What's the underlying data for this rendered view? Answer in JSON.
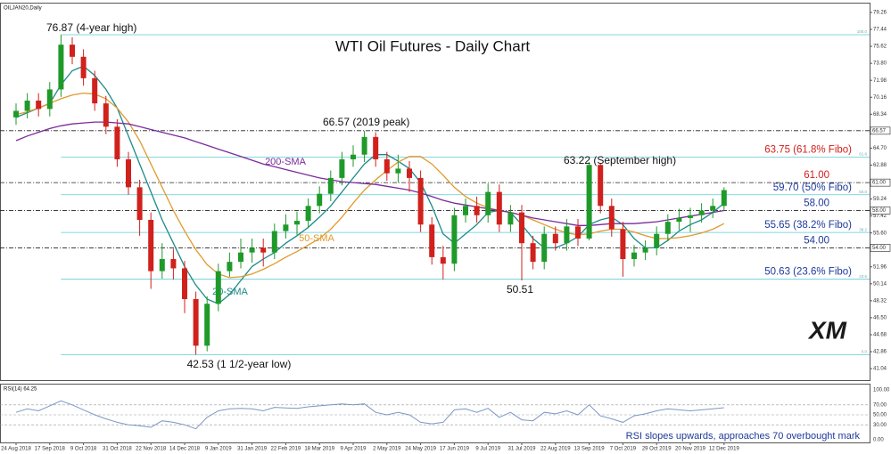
{
  "chart_data": {
    "type": "candlestick",
    "title": "WTI Oil Futures - Daily Chart",
    "symbol_label": "OILJAN20,Daily",
    "logo": "XM",
    "note": "RSI slopes upwards, approaches 70 overbought mark",
    "categories": [
      "24 Aug 2018",
      null,
      null,
      "17 Sep 2018",
      null,
      null,
      "9 Oct 2018",
      null,
      null,
      "31 Oct 2018",
      null,
      null,
      "22 Nov 2018",
      null,
      null,
      "14 Dec 2018",
      null,
      null,
      "9 Jan 2019",
      null,
      null,
      "31 Jan 2019",
      null,
      null,
      "22 Feb 2019",
      null,
      null,
      "18 Mar 2019",
      null,
      null,
      "9 Apr 2019",
      null,
      null,
      "2 May 2019",
      null,
      null,
      "24 May 2019",
      null,
      null,
      "17 Jun 2019",
      null,
      null,
      "9 Jul 2019",
      null,
      null,
      "31 Jul 2019",
      null,
      null,
      "22 Aug 2019",
      null,
      null,
      "13 Sep 2019",
      null,
      null,
      "7 Oct 2019",
      null,
      null,
      "29 Oct 2019",
      null,
      null,
      "20 Nov 2019",
      null,
      null,
      "12 Dec 2019"
    ],
    "open": [
      68.0,
      68.7,
      69.8,
      68.9,
      71.0,
      75.8,
      74.5,
      72.2,
      69.5,
      67.0,
      63.5,
      60.5,
      57.0,
      51.5,
      52.8,
      51.8,
      48.5,
      43.5,
      48.0,
      51.5,
      52.5,
      53.5,
      54.0,
      53.5,
      55.8,
      56.5,
      56.9,
      58.5,
      59.8,
      61.5,
      63.5,
      64.0,
      65.9,
      63.5,
      62.0,
      62.5,
      61.5,
      56.5,
      53.0,
      52.3,
      57.5,
      58.5,
      57.5,
      60.0,
      56.5,
      57.8,
      54.5,
      52.5,
      55.5,
      54.5,
      56.3,
      55.0,
      62.9,
      58.5,
      56.0,
      52.8,
      53.5,
      54.0,
      55.5,
      56.8,
      57.2,
      57.5,
      58.0,
      58.5
    ],
    "high": [
      69.5,
      70.6,
      70.6,
      71.8,
      76.87,
      76.6,
      75.3,
      73.0,
      70.3,
      67.8,
      64.3,
      61.3,
      57.8,
      54.5,
      53.9,
      52.6,
      49.3,
      48.8,
      52.3,
      53.5,
      55.0,
      55.0,
      55.0,
      56.6,
      57.6,
      57.9,
      59.3,
      60.6,
      62.3,
      64.3,
      65.0,
      66.57,
      66.4,
      64.3,
      64.0,
      63.3,
      62.3,
      57.3,
      54.2,
      58.3,
      59.3,
      59.5,
      60.9,
      60.8,
      58.6,
      58.6,
      55.3,
      56.3,
      56.3,
      57.1,
      57.1,
      63.22,
      63.1,
      59.3,
      56.8,
      54.3,
      54.8,
      56.3,
      57.6,
      58.2,
      58.3,
      58.8,
      59.3,
      60.5
    ],
    "low": [
      67.2,
      67.9,
      68.1,
      68.1,
      70.2,
      73.7,
      71.4,
      68.7,
      66.2,
      62.7,
      59.7,
      55.3,
      49.6,
      50.7,
      50.6,
      47.0,
      42.53,
      42.9,
      47.2,
      50.9,
      51.8,
      52.4,
      52.0,
      52.8,
      55.0,
      55.4,
      56.1,
      57.7,
      59.0,
      60.7,
      62.7,
      63.2,
      62.7,
      61.2,
      61.0,
      60.0,
      55.7,
      52.2,
      50.6,
      51.5,
      56.7,
      56.7,
      56.7,
      55.7,
      55.7,
      50.51,
      51.7,
      51.7,
      53.7,
      53.7,
      54.2,
      54.8,
      57.7,
      55.2,
      50.9,
      52.0,
      52.7,
      53.2,
      54.7,
      55.9,
      55.7,
      56.7,
      57.2,
      58.0
    ],
    "close": [
      68.7,
      69.8,
      68.9,
      71.0,
      75.8,
      74.5,
      72.2,
      69.5,
      67.0,
      63.5,
      60.5,
      57.0,
      51.5,
      52.8,
      51.8,
      48.5,
      43.5,
      48.0,
      51.5,
      52.5,
      53.5,
      54.0,
      53.5,
      55.8,
      56.5,
      56.9,
      58.5,
      59.8,
      61.5,
      63.5,
      64.0,
      65.9,
      63.5,
      62.0,
      62.5,
      61.5,
      56.5,
      53.0,
      52.3,
      57.5,
      58.5,
      57.5,
      60.0,
      56.5,
      57.8,
      54.5,
      52.5,
      55.5,
      54.5,
      56.3,
      55.0,
      62.9,
      58.5,
      56.0,
      52.8,
      53.5,
      54.0,
      55.5,
      56.8,
      57.2,
      57.5,
      58.0,
      58.5,
      60.2
    ],
    "up_color": "#1f9a2a",
    "down_color": "#d0211c",
    "ylim": [
      40,
      79.83
    ],
    "yticks": [
      79.26,
      77.44,
      75.62,
      {
        "value": 73.8,
        "label": "73.80"
      },
      71.98,
      70.16,
      68.34,
      {
        "value": 64.7,
        "label": "64.70"
      },
      62.88,
      59.24,
      57.42,
      {
        "value": 55.6,
        "label": "55.60"
      },
      51.96,
      50.14,
      48.32,
      {
        "value": 46.5,
        "label": "46.50"
      },
      44.68,
      42.86,
      41.04
    ],
    "series": [
      {
        "name": "20-SMA",
        "color": "#1d8a8a",
        "values": [
          68.0,
          68.5,
          69.0,
          69.5,
          71.5,
          73.0,
          73.5,
          72.5,
          71.0,
          69.0,
          66.0,
          63.0,
          60.0,
          57.0,
          54.5,
          52.0,
          50.0,
          48.5,
          48.0,
          49.0,
          50.5,
          52.0,
          52.8,
          53.5,
          54.5,
          55.3,
          56.2,
          57.3,
          58.5,
          60.0,
          61.5,
          63.0,
          64.0,
          64.0,
          63.3,
          62.5,
          61.0,
          58.5,
          55.5,
          54.5,
          55.5,
          56.5,
          57.8,
          58.0,
          57.8,
          56.5,
          55.0,
          54.0,
          54.0,
          54.5,
          55.2,
          56.5,
          57.0,
          57.3,
          56.5,
          55.0,
          54.0,
          54.0,
          54.8,
          55.8,
          56.5,
          57.0,
          57.8,
          58.8
        ]
      },
      {
        "name": "50-SMA",
        "color": "#e09a2c",
        "values": [
          68.3,
          68.6,
          69.0,
          69.5,
          70.0,
          70.4,
          70.6,
          70.5,
          70.0,
          69.0,
          67.5,
          65.5,
          63.0,
          60.5,
          58.0,
          55.8,
          53.8,
          52.2,
          51.2,
          50.8,
          50.9,
          51.2,
          51.7,
          52.3,
          53.0,
          53.6,
          54.3,
          55.0,
          56.0,
          57.3,
          58.8,
          60.2,
          61.3,
          62.3,
          63.2,
          63.8,
          63.8,
          63.0,
          61.8,
          60.5,
          59.5,
          58.8,
          58.3,
          58.0,
          57.8,
          57.5,
          57.0,
          56.5,
          56.0,
          55.6,
          55.4,
          55.5,
          55.8,
          56.0,
          56.0,
          55.7,
          55.3,
          55.0,
          55.0,
          55.1,
          55.3,
          55.6,
          56.0,
          56.6
        ]
      },
      {
        "name": "200-SMA",
        "color": "#7a2a9c",
        "values": [
          65.5,
          66.0,
          66.4,
          66.8,
          67.1,
          67.3,
          67.4,
          67.5,
          67.5,
          67.4,
          67.3,
          67.0,
          66.7,
          66.4,
          66.1,
          65.8,
          65.4,
          65.0,
          64.6,
          64.2,
          63.8,
          63.4,
          63.0,
          62.7,
          62.4,
          62.1,
          61.8,
          61.5,
          61.3,
          61.1,
          61.0,
          60.9,
          60.8,
          60.6,
          60.4,
          60.2,
          59.9,
          59.5,
          59.1,
          58.8,
          58.6,
          58.4,
          58.2,
          58.0,
          57.8,
          57.5,
          57.2,
          57.0,
          56.8,
          56.6,
          56.4,
          56.4,
          56.5,
          56.6,
          56.6,
          56.6,
          56.7,
          56.8,
          57.0,
          57.2,
          57.4,
          57.6,
          57.8,
          58.0
        ]
      }
    ],
    "levels": [
      {
        "value": 76.87,
        "kind": "fibo",
        "tag": "100.0"
      },
      {
        "value": 66.57,
        "kind": "level",
        "axis_label": "66.57"
      },
      {
        "value": 63.75,
        "kind": "fibo",
        "tag": "61.8",
        "text": "63.75 (61.8% Fibo)",
        "text_color": "#d0211c"
      },
      {
        "value": 61,
        "kind": "level",
        "axis_label": "61.00",
        "text": "61.00",
        "text_color": "#d0211c"
      },
      {
        "value": 59.7,
        "kind": "fibo",
        "tag": "50.0",
        "text": "59.70 (50% Fibo)",
        "text_color": "#1f3a9a"
      },
      {
        "value": 58,
        "kind": "level",
        "axis_label": "58.00",
        "text": "58.00",
        "text_color": "#1f3a9a"
      },
      {
        "value": 55.65,
        "kind": "fibo",
        "tag": "38.2",
        "text": "55.65 (38.2% Fibo)",
        "text_color": "#1f3a9a"
      },
      {
        "value": 54,
        "kind": "level",
        "axis_label": "54.00",
        "text": "54.00",
        "text_color": "#1f3a9a"
      },
      {
        "value": 50.63,
        "kind": "fibo",
        "tag": "23.6",
        "text": "50.63 (23.6% Fibo)",
        "text_color": "#1f3a9a"
      },
      {
        "value": 42.53,
        "kind": "fibo",
        "tag": "0.0"
      }
    ],
    "fibo_color": "#5ec8d8",
    "annotations": [
      "76.87 (4-year high)",
      "66.57 (2019 peak)",
      "63.22 (September high)",
      "50.51",
      "42.53 (1 1/2-year low)"
    ],
    "rsi": {
      "label": "RSI(14) 64.25",
      "color": "#7b97c4",
      "ylim": [
        0,
        100
      ],
      "yticks": [
        {
          "value": 100,
          "label": "100.00"
        },
        {
          "value": 70,
          "label": "70.00"
        },
        {
          "value": 50,
          "label": "50.00"
        },
        {
          "value": 30,
          "label": "30.00"
        },
        {
          "value": 0,
          "label": "0.00"
        }
      ],
      "values": [
        55,
        62,
        58,
        68,
        78,
        70,
        60,
        50,
        42,
        35,
        30,
        28,
        25,
        38,
        35,
        30,
        22,
        45,
        58,
        62,
        63,
        62,
        58,
        65,
        64,
        63,
        66,
        68,
        70,
        72,
        70,
        72,
        55,
        50,
        55,
        50,
        35,
        32,
        35,
        60,
        62,
        55,
        63,
        45,
        55,
        40,
        38,
        55,
        52,
        58,
        50,
        70,
        48,
        42,
        35,
        48,
        52,
        58,
        62,
        60,
        58,
        60,
        62,
        64.25
      ]
    }
  }
}
